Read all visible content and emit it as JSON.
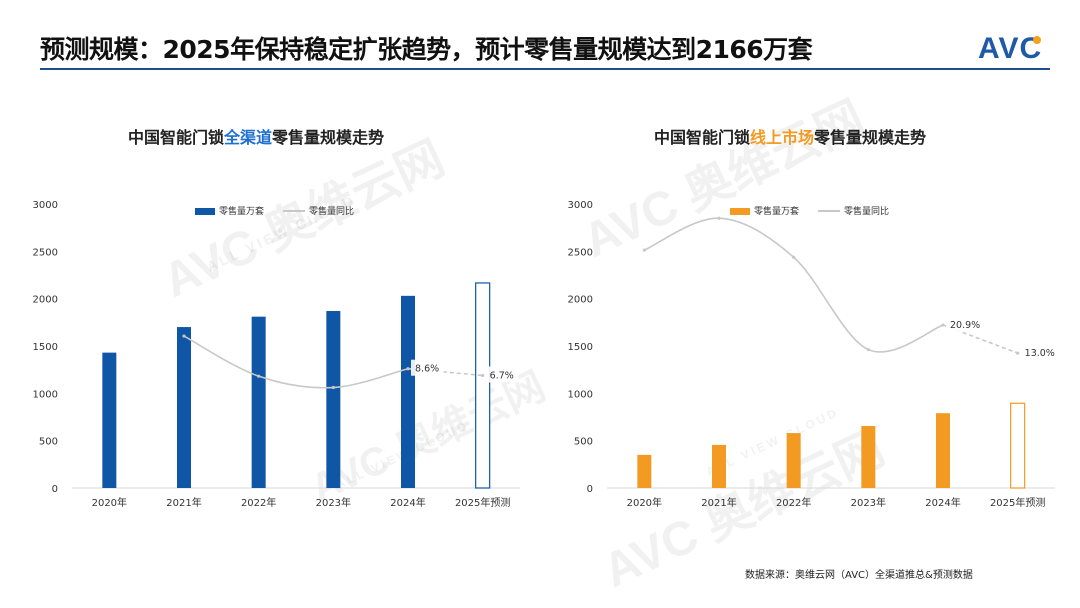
{
  "header": {
    "title": "预测规模：2025年保持稳定扩张趋势，预计零售量规模达到2166万套",
    "logo_text": "AVC"
  },
  "colors": {
    "blue": "#0f57a6",
    "orange": "#f29a22",
    "line": "#c8c8c8",
    "rule": "#1d4e89"
  },
  "watermark": {
    "brand": "AVC 奥维云网",
    "sub": "ALL VIEW CLOUD"
  },
  "chart_data": [
    {
      "type": "bar",
      "title_parts": [
        "中国智能门锁",
        "全渠道",
        "零售量规模走势"
      ],
      "legend": [
        "零售量万套",
        "零售量同比"
      ],
      "categories": [
        "2020年",
        "2021年",
        "2022年",
        "2023年",
        "2024年",
        "2025年预测"
      ],
      "series": [
        {
          "name": "零售量万套",
          "type": "bar",
          "values": [
            1430,
            1700,
            1810,
            1870,
            2030,
            2166
          ],
          "forecast_last": true
        },
        {
          "name": "零售量同比",
          "type": "line",
          "values": [
            null,
            17.8,
            6.5,
            3.3,
            8.6,
            6.7
          ],
          "data_labels": [
            null,
            null,
            null,
            null,
            "8.6%",
            "6.7%"
          ],
          "forecast_last": true
        }
      ],
      "ylim": [
        0,
        3000
      ],
      "yticks": [
        0,
        500,
        1000,
        1500,
        2000,
        2500,
        3000
      ],
      "line_ylim": [
        -25,
        55
      ],
      "grid": false,
      "legend_position": "top"
    },
    {
      "type": "bar",
      "title_parts": [
        "中国智能门锁",
        "线上市场",
        "零售量规模走势"
      ],
      "legend": [
        "零售量万套",
        "零售量同比"
      ],
      "categories": [
        "2020年",
        "2021年",
        "2022年",
        "2023年",
        "2024年",
        "2025年预测"
      ],
      "series": [
        {
          "name": "零售量万套",
          "type": "bar",
          "values": [
            350,
            455,
            580,
            655,
            790,
            895
          ],
          "forecast_last": true
        },
        {
          "name": "零售量同比",
          "type": "line",
          "values": [
            42.0,
            51.0,
            40.0,
            14.0,
            20.9,
            13.0
          ],
          "data_labels": [
            null,
            null,
            null,
            null,
            "20.9%",
            "13.0%"
          ],
          "forecast_last": true
        }
      ],
      "ylim": [
        0,
        3000
      ],
      "yticks": [
        0,
        500,
        1000,
        1500,
        2000,
        2500,
        3000
      ],
      "line_ylim": [
        -25,
        55
      ],
      "grid": false,
      "legend_position": "top"
    }
  ],
  "source": "数据来源：奥维云网（AVC）全渠道推总&预测数据"
}
